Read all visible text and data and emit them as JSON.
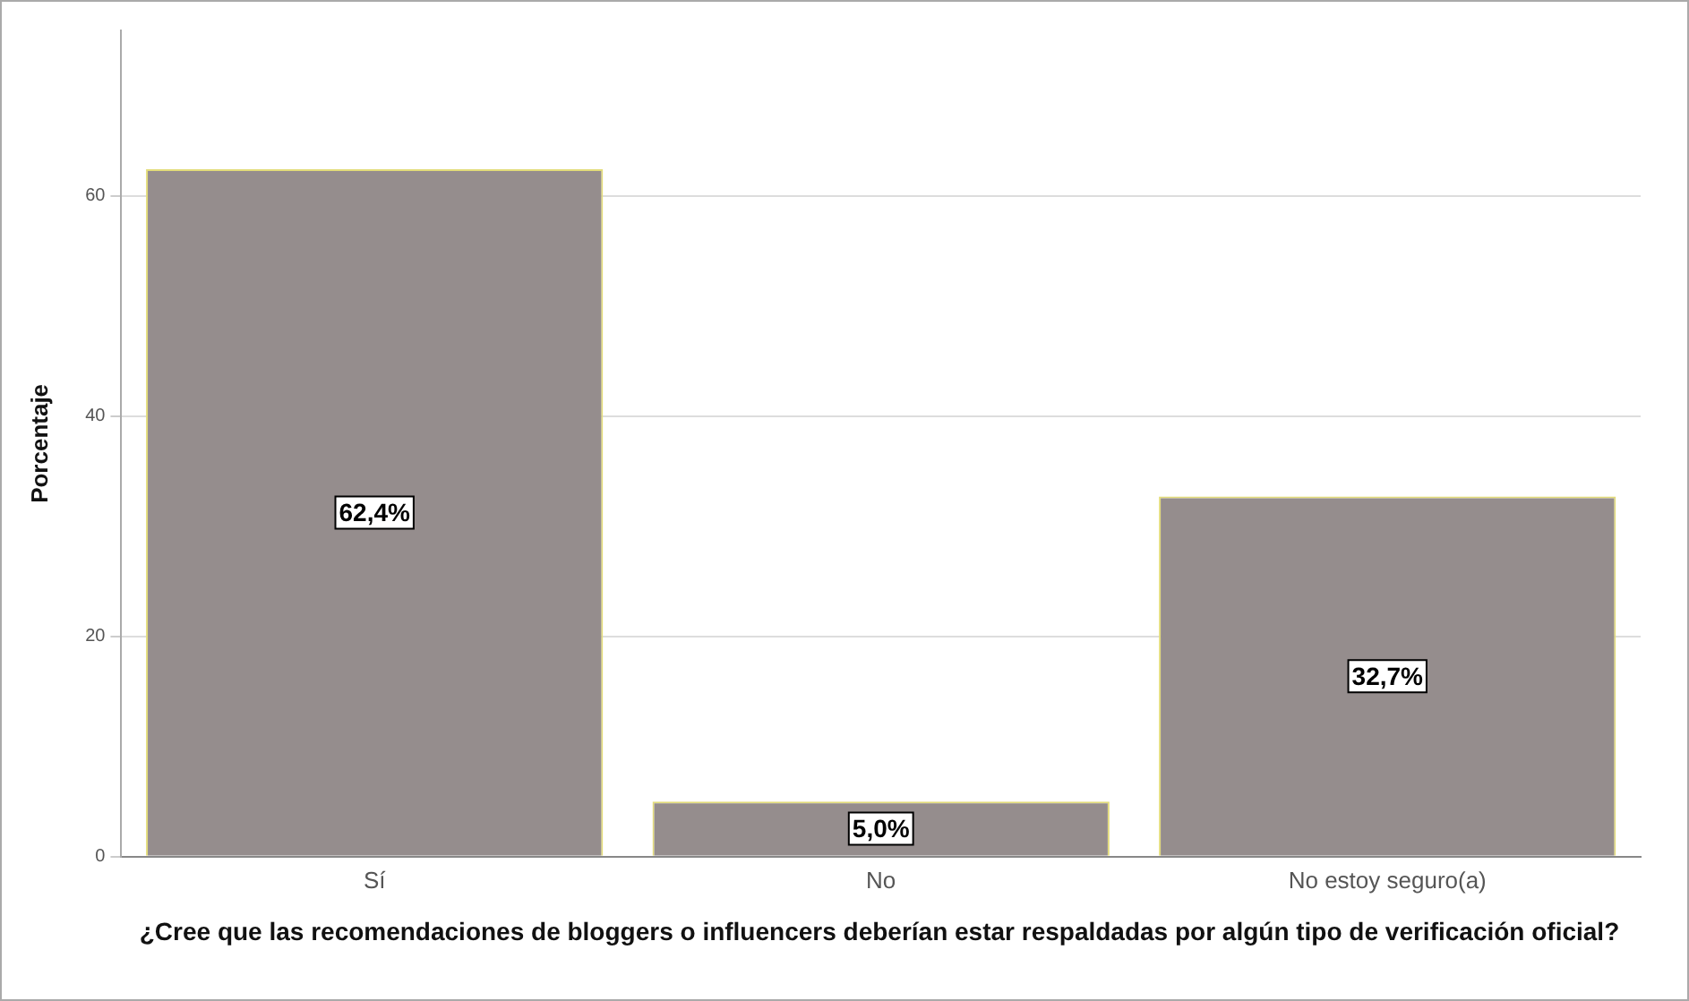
{
  "chart_data": {
    "type": "bar",
    "xlabel": "¿Cree que las recomendaciones de bloggers o influencers deberían estar respaldadas por algún tipo de verificación oficial?",
    "ylabel": "Porcentaje",
    "categories": [
      "Sí",
      "No",
      "No estoy seguro(a)"
    ],
    "values": [
      62.4,
      5.0,
      32.7
    ],
    "value_labels": [
      "62,4%",
      "5,0%",
      "32,7%"
    ],
    "color": "#958d8d",
    "ylim": [
      0,
      75
    ],
    "yticks": [
      0,
      20,
      40,
      60
    ],
    "grid": "y"
  }
}
